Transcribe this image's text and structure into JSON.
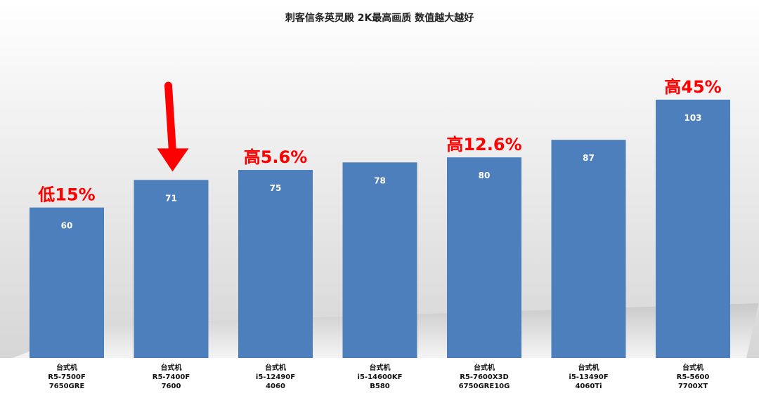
{
  "chart_data": {
    "type": "bar",
    "title": "刺客信条英灵殿 2K最高画质 数值越大越好",
    "categories": [
      [
        "台式机",
        "R5-7500F",
        "7650GRE"
      ],
      [
        "台式机",
        "R5-7400F",
        "7600"
      ],
      [
        "台式机",
        "i5-12490F",
        "4060"
      ],
      [
        "台式机",
        "i5-14600KF",
        "B580"
      ],
      [
        "台式机",
        "R5-7600X3D",
        "6750GRE10G"
      ],
      [
        "台式机",
        "i5-13490F",
        "4060Ti"
      ],
      [
        "台式机",
        "R5-5600",
        "7700XT"
      ]
    ],
    "values": [
      60,
      71,
      75,
      78,
      80,
      87,
      103
    ],
    "annotations": [
      {
        "index": 0,
        "text": "低15%"
      },
      {
        "index": 2,
        "text": "高5.6%"
      },
      {
        "index": 4,
        "text": "高12.6%"
      },
      {
        "index": 6,
        "text": "高45%"
      }
    ],
    "highlight_index": 1,
    "bar_color": "#4e7fbd",
    "annotation_color": "#ff0000",
    "arrow_color": "#ff0000",
    "grid": false,
    "legend": "none"
  }
}
